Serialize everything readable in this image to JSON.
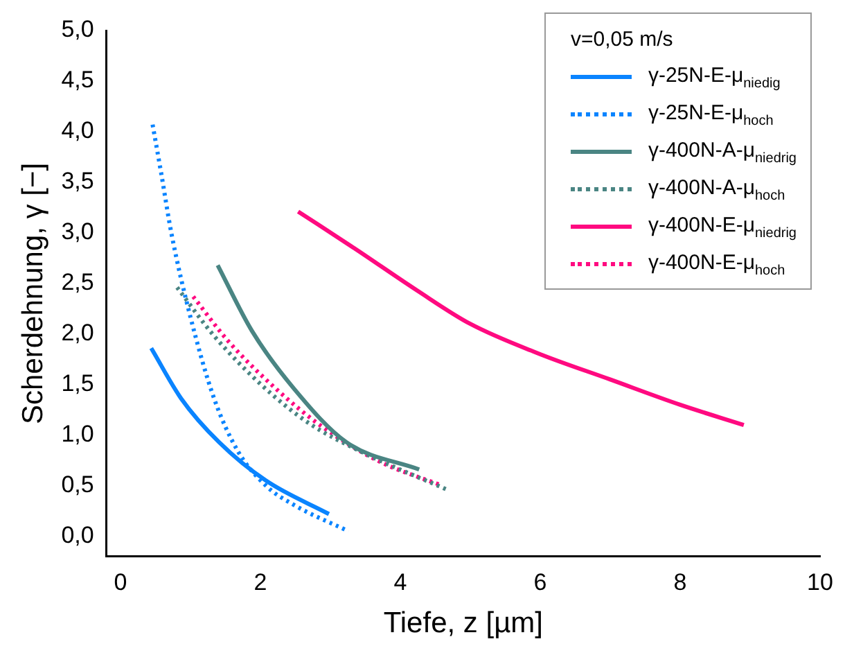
{
  "chart_data": {
    "type": "line",
    "xlabel": "Tiefe, z [µm]",
    "ylabel": "Scherdehnung, γ [−]",
    "legend_title": "v=0,05 m/s",
    "legend": "top right",
    "grid": false,
    "marker": "none",
    "xlim": [
      -0.2,
      10
    ],
    "xticks": [
      0,
      2,
      4,
      6,
      8,
      10
    ],
    "ylim": [
      -0.2,
      5
    ],
    "yticks": [
      {
        "value": 0,
        "label": "0,0"
      },
      {
        "value": 0.5,
        "label": "0,5"
      },
      {
        "value": 1,
        "label": "1,0"
      },
      {
        "value": 1.5,
        "label": "1,5"
      },
      {
        "value": 2,
        "label": "2,0"
      },
      {
        "value": 2.5,
        "label": "2,5"
      },
      {
        "value": 3,
        "label": "3,0"
      },
      {
        "value": 3.5,
        "label": "3,5"
      },
      {
        "value": 4,
        "label": "4,0"
      },
      {
        "value": 4.5,
        "label": "4,5"
      },
      {
        "value": 5,
        "label": "5,0"
      }
    ],
    "series": [
      {
        "name": "γ-25N-E-μ$_{niedig}$",
        "color": "#0a84ff",
        "line_style": "solid",
        "x": [
          0.44,
          0.87,
          1.41,
          2.08,
          2.98
        ],
        "values": [
          1.86,
          1.36,
          0.93,
          0.55,
          0.22
        ]
      },
      {
        "name": "γ-25N-E-μ$_{hoch}$",
        "color": "#0a84ff",
        "line_style": "dotted",
        "x": [
          0.46,
          0.58,
          0.73,
          1.0,
          1.34,
          1.68,
          2.08,
          2.48,
          3.26
        ],
        "values": [
          4.07,
          3.6,
          2.99,
          2.17,
          1.36,
          0.84,
          0.5,
          0.31,
          0.05
        ]
      },
      {
        "name": "γ-400N-A-μ$_{niedrig}$",
        "color": "#4a8583",
        "line_style": "solid",
        "x": [
          1.39,
          1.88,
          2.48,
          3.23,
          4.27
        ],
        "values": [
          2.68,
          2.03,
          1.46,
          0.93,
          0.66
        ]
      },
      {
        "name": "γ-400N-A-μ$_{hoch}$",
        "color": "#4a8583",
        "line_style": "dotted",
        "x": [
          0.81,
          1.34,
          2.01,
          2.69,
          3.43,
          4.67
        ],
        "values": [
          2.46,
          1.98,
          1.5,
          1.12,
          0.84,
          0.46
        ]
      },
      {
        "name": "γ-400N-E-μ$_{niedrig}$",
        "color": "#ff0a80",
        "line_style": "solid",
        "x": [
          2.54,
          3.36,
          4.24,
          5,
          6,
          7,
          8,
          8.91
        ],
        "values": [
          3.21,
          2.84,
          2.43,
          2.1,
          1.8,
          1.55,
          1.3,
          1.1
        ]
      },
      {
        "name": "γ-400N-E-μ$_{hoch}$",
        "color": "#ff0a80",
        "line_style": "dotted",
        "x": [
          1.04,
          1.54,
          2.22,
          2.89,
          3.7,
          4.6
        ],
        "values": [
          2.37,
          1.93,
          1.46,
          1.08,
          0.74,
          0.5
        ]
      }
    ]
  }
}
